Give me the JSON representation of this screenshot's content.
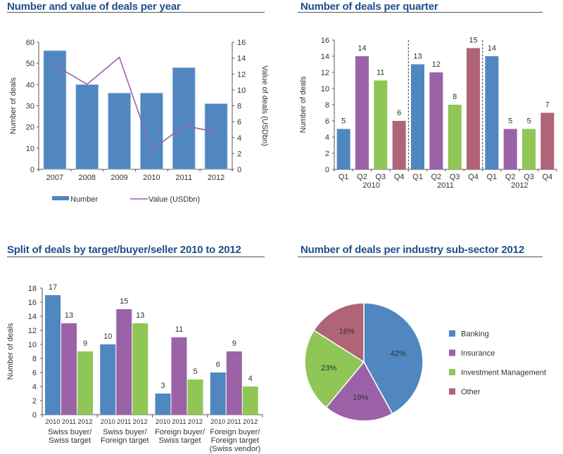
{
  "colors": {
    "blue": "#5087c0",
    "purple": "#9b62a8",
    "green": "#8fc655",
    "rose": "#b06477",
    "title": "#1f4e8c",
    "axis": "#555555"
  },
  "chart_data": [
    {
      "id": "deals-per-year",
      "type": "bar",
      "title": "Number and value of deals per year",
      "categories": [
        "2007",
        "2008",
        "2009",
        "2010",
        "2011",
        "2012"
      ],
      "series": [
        {
          "name": "Number",
          "kind": "bar",
          "axis": "left",
          "values": [
            56,
            40,
            36,
            36,
            48,
            31
          ]
        },
        {
          "name": "Value (USDbn)",
          "kind": "line",
          "axis": "right",
          "values": [
            13.1,
            10.7,
            14.1,
            2.4,
            5.5,
            4.7
          ]
        }
      ],
      "ylabel": "Number of deals",
      "y2label": "Value of deals (USDbn)",
      "ylim": [
        0,
        60
      ],
      "yticks": [
        "0",
        "10",
        "20",
        "30",
        "40",
        "50",
        "60"
      ],
      "y2lim": [
        0,
        16
      ],
      "y2ticks": [
        "0",
        "2",
        "4",
        "6",
        "8",
        "10",
        "12",
        "14",
        "16"
      ],
      "legend": [
        {
          "label": "Number",
          "kind": "bar"
        },
        {
          "label": "Value (USDbn)",
          "kind": "line"
        }
      ],
      "legend_position": "bottom",
      "grid": false
    },
    {
      "id": "deals-per-quarter",
      "type": "bar",
      "title": "Number of deals per quarter",
      "categories": [
        "Q1",
        "Q2",
        "Q3",
        "Q4",
        "Q1",
        "Q2",
        "Q3",
        "Q4",
        "Q1",
        "Q2",
        "Q3",
        "Q4"
      ],
      "groups": [
        "2010",
        "2011",
        "2012"
      ],
      "values": [
        5,
        14,
        11,
        6,
        13,
        12,
        8,
        15,
        14,
        5,
        5,
        7
      ],
      "bar_color_keys": [
        "blue",
        "purple",
        "green",
        "rose",
        "blue",
        "purple",
        "green",
        "rose",
        "blue",
        "purple",
        "green",
        "rose"
      ],
      "ylabel": "Number of deals",
      "ylim": [
        0,
        16
      ],
      "yticks": [
        "0",
        "2",
        "4",
        "6",
        "8",
        "10",
        "12",
        "14",
        "16"
      ],
      "grid": false
    },
    {
      "id": "split-by-target",
      "type": "bar",
      "title": "Split of deals by target/buyer/seller 2010 to 2012",
      "groups": [
        {
          "label_lines": [
            "Swiss buyer/",
            "Swiss target"
          ],
          "years": [
            "2010",
            "2011",
            "2012"
          ],
          "values": [
            17,
            13,
            9
          ]
        },
        {
          "label_lines": [
            "Swiss buyer/",
            "Foreign target"
          ],
          "years": [
            "2010",
            "2011",
            "2012"
          ],
          "values": [
            10,
            15,
            13
          ]
        },
        {
          "label_lines": [
            "Foreign buyer/",
            "Swiss target"
          ],
          "years": [
            "2010",
            "2011",
            "2012"
          ],
          "values": [
            3,
            11,
            5
          ]
        },
        {
          "label_lines": [
            "Foreign buyer/",
            "Foreign target",
            "(Swiss vendor)"
          ],
          "years": [
            "2010",
            "2011",
            "2012"
          ],
          "values": [
            6,
            9,
            4
          ]
        }
      ],
      "bar_color_keys": [
        "blue",
        "purple",
        "green"
      ],
      "ylabel": "Number of deals",
      "ylim": [
        0,
        18
      ],
      "yticks": [
        "0",
        "2",
        "4",
        "6",
        "8",
        "10",
        "12",
        "14",
        "16",
        "18"
      ],
      "grid": false
    },
    {
      "id": "deals-per-subsector",
      "type": "pie",
      "title": "Number of deals per industry sub-sector 2012",
      "slices": [
        {
          "label": "Banking",
          "value": 42,
          "display": "42%",
          "color_key": "blue"
        },
        {
          "label": "Insurance",
          "value": 19,
          "display": "19%",
          "color_key": "purple"
        },
        {
          "label": "Investment Management",
          "value": 23,
          "display": "23%",
          "color_key": "green"
        },
        {
          "label": "Other",
          "value": 16,
          "display": "16%",
          "color_key": "rose"
        }
      ],
      "legend_position": "right"
    }
  ]
}
